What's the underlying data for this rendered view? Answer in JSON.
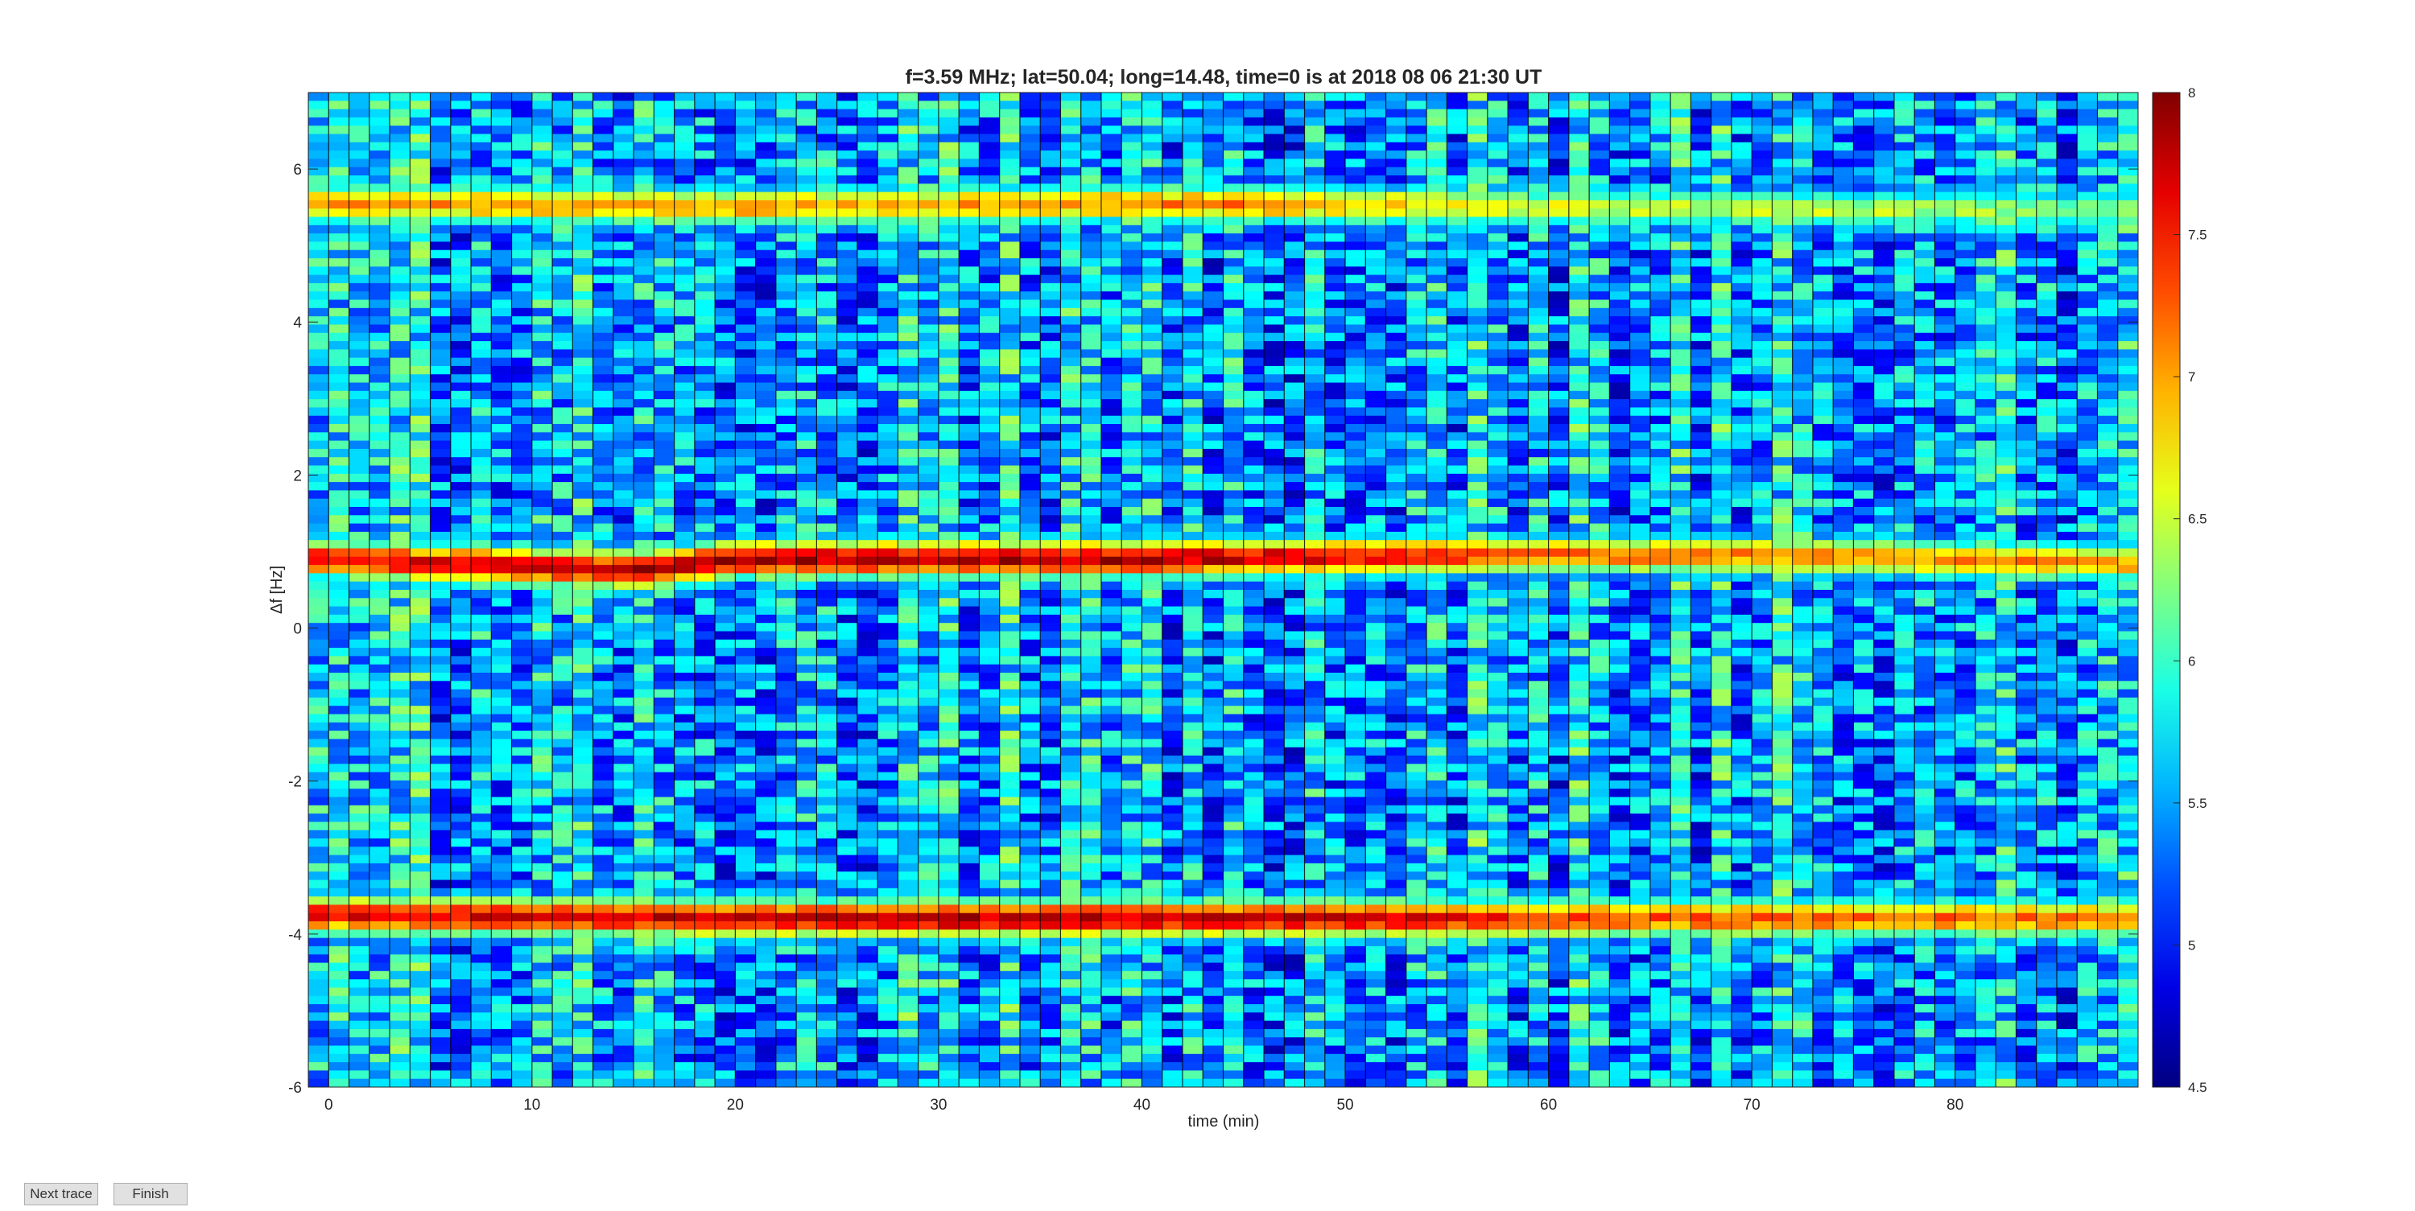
{
  "chart_data": {
    "type": "heatmap",
    "title": "f=3.59 MHz;  lat=50.04; long=14.48, time=0 is at 2018 08 06 21:30 UT",
    "xlabel": "time (min)",
    "ylabel": "Δf [Hz]",
    "xlim": [
      -1,
      89
    ],
    "ylim": [
      -6,
      7
    ],
    "xticks": [
      0,
      10,
      20,
      30,
      40,
      50,
      60,
      70,
      80
    ],
    "yticks": [
      -6,
      -4,
      -2,
      0,
      2,
      4,
      6
    ],
    "colorbar": {
      "colormap": "jet",
      "range": [
        4.5,
        8
      ],
      "ticks": [
        "4.5",
        "5",
        "5.5",
        "6",
        "6.5",
        "7",
        "7.5",
        "8"
      ]
    },
    "trace_lines": [
      {
        "name": "upper",
        "center_hz": [
          [
            0,
            5.55
          ],
          [
            20,
            5.5
          ],
          [
            40,
            5.55
          ],
          [
            60,
            5.5
          ],
          [
            89,
            5.45
          ]
        ],
        "intensity": [
          [
            0,
            0.72
          ],
          [
            30,
            0.72
          ],
          [
            45,
            0.75
          ],
          [
            60,
            0.6
          ],
          [
            89,
            0.52
          ]
        ]
      },
      {
        "name": "middle",
        "center_hz": [
          [
            0,
            0.9
          ],
          [
            15,
            0.75
          ],
          [
            20,
            0.9
          ],
          [
            40,
            0.9
          ],
          [
            55,
            0.95
          ],
          [
            70,
            0.95
          ],
          [
            89,
            0.85
          ]
        ],
        "intensity": [
          [
            0,
            0.88
          ],
          [
            15,
            0.95
          ],
          [
            40,
            0.95
          ],
          [
            50,
            0.9
          ],
          [
            60,
            0.78
          ],
          [
            89,
            0.72
          ]
        ]
      },
      {
        "name": "lower",
        "center_hz": [
          [
            0,
            -3.75
          ],
          [
            20,
            -3.8
          ],
          [
            30,
            -3.8
          ],
          [
            50,
            -3.8
          ],
          [
            70,
            -3.8
          ],
          [
            89,
            -3.8
          ]
        ],
        "intensity": [
          [
            0,
            0.88
          ],
          [
            30,
            0.95
          ],
          [
            50,
            0.92
          ],
          [
            65,
            0.8
          ],
          [
            89,
            0.75
          ]
        ]
      }
    ],
    "background_level": 0.3,
    "segment_minutes": 1
  },
  "buttons": {
    "next_label": "Next trace",
    "finish_label": "Finish"
  }
}
